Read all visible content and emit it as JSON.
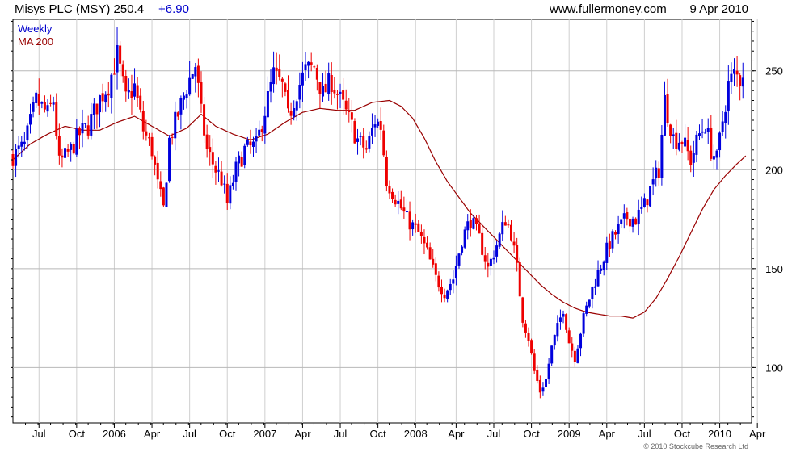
{
  "header": {
    "title": "Misys PLC (MSY) 250.4",
    "change": "+6.90",
    "website": "www.fullermoney.com",
    "date": "9 Apr 2010"
  },
  "legend": {
    "weekly": "Weekly",
    "ma": "MA 200"
  },
  "copyright": "© 2010 Stockcube Research Ltd",
  "colors": {
    "up": "#0000dd",
    "down": "#ee0000",
    "ma": "#990000",
    "grid": "#cfcfcf",
    "text": "#000000"
  },
  "chart_data": {
    "type": "candlestick",
    "ylim": [
      72,
      276
    ],
    "y_ticks": [
      100,
      150,
      200,
      250
    ],
    "x_tick_labels": [
      "Jul",
      "Oct",
      "2006",
      "Apr",
      "Jul",
      "Oct",
      "2007",
      "Apr",
      "Jul",
      "Oct",
      "2008",
      "Apr",
      "Jul",
      "Oct",
      "2009",
      "Apr",
      "Jul",
      "Oct",
      "2010",
      "Apr"
    ],
    "x_tick_weeks": [
      9,
      22,
      35,
      48,
      61,
      74,
      87,
      100,
      113,
      126,
      139,
      153,
      166,
      179,
      192,
      205,
      218,
      231,
      244,
      257
    ],
    "price_waypoints": [
      [
        0,
        207
      ],
      [
        4,
        212
      ],
      [
        8,
        235
      ],
      [
        12,
        228
      ],
      [
        14,
        235
      ],
      [
        16,
        203
      ],
      [
        20,
        210
      ],
      [
        23,
        218
      ],
      [
        26,
        222
      ],
      [
        30,
        236
      ],
      [
        33,
        243
      ],
      [
        36,
        258
      ],
      [
        39,
        235
      ],
      [
        42,
        242
      ],
      [
        45,
        220
      ],
      [
        48,
        210
      ],
      [
        50,
        192
      ],
      [
        52,
        180
      ],
      [
        54,
        215
      ],
      [
        57,
        228
      ],
      [
        60,
        242
      ],
      [
        63,
        253
      ],
      [
        65,
        228
      ],
      [
        67,
        210
      ],
      [
        70,
        200
      ],
      [
        72,
        195
      ],
      [
        74,
        183
      ],
      [
        77,
        200
      ],
      [
        80,
        210
      ],
      [
        84,
        212
      ],
      [
        87,
        230
      ],
      [
        90,
        248
      ],
      [
        93,
        242
      ],
      [
        95,
        226
      ],
      [
        98,
        240
      ],
      [
        101,
        250
      ],
      [
        104,
        252
      ],
      [
        107,
        238
      ],
      [
        110,
        245
      ],
      [
        113,
        235
      ],
      [
        116,
        225
      ],
      [
        119,
        215
      ],
      [
        122,
        210
      ],
      [
        125,
        225
      ],
      [
        127,
        222
      ],
      [
        129,
        195
      ],
      [
        132,
        186
      ],
      [
        136,
        175
      ],
      [
        140,
        168
      ],
      [
        143,
        158
      ],
      [
        146,
        145
      ],
      [
        149,
        138
      ],
      [
        152,
        145
      ],
      [
        155,
        165
      ],
      [
        158,
        175
      ],
      [
        161,
        165
      ],
      [
        164,
        150
      ],
      [
        167,
        162
      ],
      [
        170,
        175
      ],
      [
        172,
        168
      ],
      [
        174,
        150
      ],
      [
        176,
        125
      ],
      [
        178,
        115
      ],
      [
        180,
        98
      ],
      [
        182,
        88
      ],
      [
        184,
        94
      ],
      [
        186,
        110
      ],
      [
        188,
        120
      ],
      [
        190,
        130
      ],
      [
        192,
        113
      ],
      [
        194,
        105
      ],
      [
        197,
        125
      ],
      [
        200,
        140
      ],
      [
        203,
        152
      ],
      [
        206,
        163
      ],
      [
        209,
        170
      ],
      [
        212,
        176
      ],
      [
        215,
        175
      ],
      [
        218,
        182
      ],
      [
        220,
        190
      ],
      [
        223,
        200
      ],
      [
        225,
        235
      ],
      [
        228,
        216
      ],
      [
        231,
        215
      ],
      [
        234,
        205
      ],
      [
        237,
        218
      ],
      [
        239,
        223
      ],
      [
        241,
        210
      ],
      [
        243,
        205
      ],
      [
        245,
        225
      ],
      [
        247,
        243
      ],
      [
        249,
        248
      ],
      [
        251,
        246
      ],
      [
        252,
        250
      ]
    ],
    "ma_waypoints": [
      [
        0,
        205
      ],
      [
        6,
        213
      ],
      [
        12,
        218
      ],
      [
        18,
        222
      ],
      [
        24,
        220
      ],
      [
        30,
        220
      ],
      [
        36,
        224
      ],
      [
        42,
        227
      ],
      [
        48,
        222
      ],
      [
        54,
        217
      ],
      [
        60,
        221
      ],
      [
        65,
        228
      ],
      [
        70,
        222
      ],
      [
        76,
        218
      ],
      [
        82,
        215
      ],
      [
        88,
        218
      ],
      [
        94,
        224
      ],
      [
        100,
        229
      ],
      [
        106,
        231
      ],
      [
        112,
        230
      ],
      [
        118,
        230
      ],
      [
        124,
        234
      ],
      [
        130,
        235
      ],
      [
        134,
        232
      ],
      [
        138,
        226
      ],
      [
        142,
        216
      ],
      [
        146,
        204
      ],
      [
        150,
        194
      ],
      [
        154,
        186
      ],
      [
        158,
        178
      ],
      [
        162,
        172
      ],
      [
        166,
        166
      ],
      [
        170,
        160
      ],
      [
        174,
        154
      ],
      [
        178,
        148
      ],
      [
        182,
        142
      ],
      [
        186,
        137
      ],
      [
        190,
        133
      ],
      [
        194,
        130
      ],
      [
        198,
        128
      ],
      [
        202,
        127
      ],
      [
        206,
        126
      ],
      [
        210,
        126
      ],
      [
        214,
        125
      ],
      [
        218,
        128
      ],
      [
        222,
        135
      ],
      [
        226,
        145
      ],
      [
        230,
        156
      ],
      [
        234,
        168
      ],
      [
        238,
        180
      ],
      [
        242,
        190
      ],
      [
        246,
        197
      ],
      [
        250,
        203
      ],
      [
        253,
        207
      ]
    ]
  }
}
